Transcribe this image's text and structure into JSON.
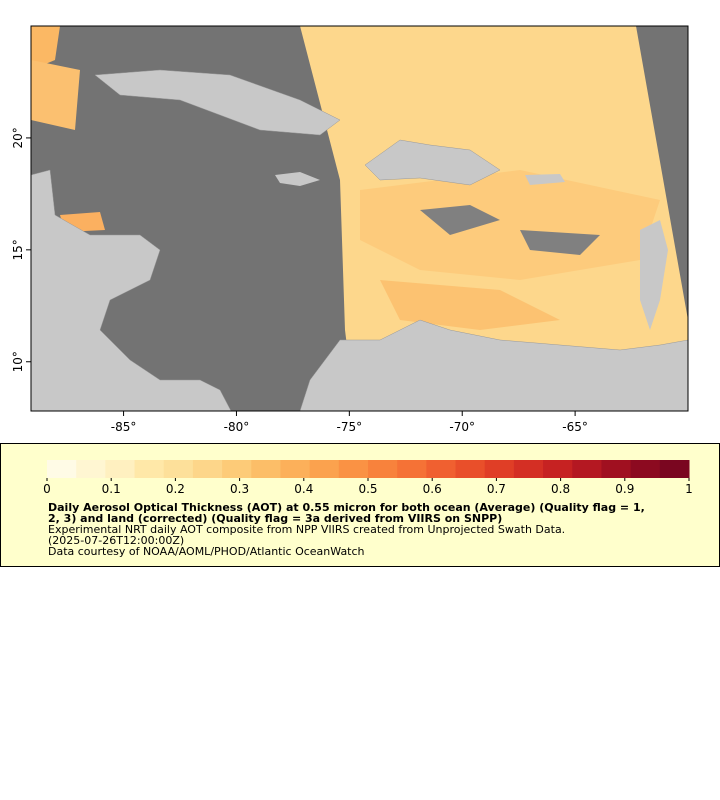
{
  "map": {
    "xlim": [
      -89.1,
      -60
    ],
    "ylim": [
      7.8,
      25
    ],
    "xticks": [
      {
        "value": -85,
        "label": "-85°"
      },
      {
        "value": -80,
        "label": "-80°"
      },
      {
        "value": -75,
        "label": "-75°"
      },
      {
        "value": -70,
        "label": "-70°"
      },
      {
        "value": -65,
        "label": "-65°"
      }
    ],
    "yticks": [
      {
        "value": 10,
        "label": "10°"
      },
      {
        "value": 15,
        "label": "15°"
      },
      {
        "value": 20,
        "label": "20°"
      }
    ],
    "colorbar": {
      "lim": [
        0,
        1
      ],
      "ticks": [
        0,
        0.1,
        0.2,
        0.3,
        0.4,
        0.5,
        0.6,
        0.7,
        0.8,
        0.9,
        1
      ],
      "colors": [
        "#fffbe6",
        "#fff6d2",
        "#fff0c0",
        "#ffe8a8",
        "#fde09a",
        "#fdd68a",
        "#fdcb78",
        "#fcbe68",
        "#fcb05a",
        "#fba24e",
        "#fa9244",
        "#f8823c",
        "#f57236",
        "#f06030",
        "#e94f2a",
        "#e03e26",
        "#d42f24",
        "#c62222",
        "#b41822",
        "#a01020",
        "#8c0a20",
        "#7a0620"
      ]
    },
    "legend": {
      "title": [
        "Daily Aerosol Optical Thickness (AOT) at 0.55 micron for both ocean (Average) (Quality flag = 1,",
        "2, 3) and land (corrected) (Quality flag = 3a derived from VIIRS on SNPP)"
      ],
      "lines": [
        "Experimental NRT daily AOT composite from NPP VIIRS created from Unprojected Swath Data.",
        "(2025-07-26T12:00:00Z)",
        "Data courtesy of NOAA/AOML/PHOD/Atlantic OceanWatch"
      ]
    }
  }
}
